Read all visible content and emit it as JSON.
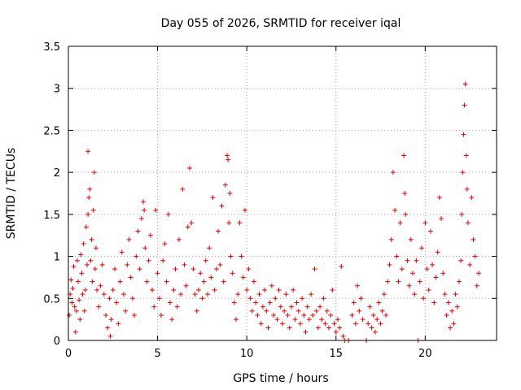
{
  "chart_data": {
    "type": "scatter",
    "title": "Day 055 of 2026, SRMTID for receiver iqal",
    "xlabel": "GPS time / hours",
    "ylabel": "SRMTID / TECUs",
    "xlim": [
      0,
      24
    ],
    "ylim": [
      0,
      3.5
    ],
    "xticks": [
      0,
      5,
      10,
      15,
      20
    ],
    "yticks": [
      0,
      0.5,
      1,
      1.5,
      2,
      2.5,
      3,
      3.5
    ],
    "xtick_labels": [
      "0",
      "5",
      "10",
      "15",
      "20"
    ],
    "ytick_labels": [
      "0",
      "0.5",
      "1",
      "1.5",
      "2",
      "2.5",
      "3",
      "3.5"
    ],
    "grid": true,
    "marker": "+",
    "series": [
      {
        "name": "iqal",
        "color": "#e00000",
        "points": [
          [
            0.05,
            0.3
          ],
          [
            0.1,
            0.55
          ],
          [
            0.15,
            0.72
          ],
          [
            0.2,
            0.45
          ],
          [
            0.25,
            0.62
          ],
          [
            0.3,
            0.88
          ],
          [
            0.35,
            0.4
          ],
          [
            0.4,
            0.1
          ],
          [
            0.45,
            0.35
          ],
          [
            0.5,
            0.95
          ],
          [
            0.55,
            0.7
          ],
          [
            0.6,
            0.48
          ],
          [
            0.65,
            0.25
          ],
          [
            0.7,
            1.02
          ],
          [
            0.75,
            0.8
          ],
          [
            0.8,
            0.55
          ],
          [
            0.85,
            1.15
          ],
          [
            0.9,
            0.35
          ],
          [
            0.95,
            0.6
          ],
          [
            1.0,
            1.35
          ],
          [
            1.05,
            0.9
          ],
          [
            1.1,
            1.5
          ],
          [
            1.15,
            1.7
          ],
          [
            1.2,
            1.8
          ],
          [
            1.1,
            2.25
          ],
          [
            1.25,
            0.95
          ],
          [
            1.3,
            1.2
          ],
          [
            1.35,
            0.7
          ],
          [
            1.4,
            1.55
          ],
          [
            1.45,
            2.0
          ],
          [
            1.5,
            0.85
          ],
          [
            1.55,
            1.1
          ],
          [
            1.6,
            0.6
          ],
          [
            1.7,
            0.4
          ],
          [
            1.8,
            0.65
          ],
          [
            1.9,
            0.9
          ],
          [
            2.0,
            0.55
          ],
          [
            2.1,
            0.3
          ],
          [
            2.2,
            0.15
          ],
          [
            2.3,
            0.5
          ],
          [
            2.35,
            0.05
          ],
          [
            2.4,
            0.25
          ],
          [
            2.5,
            0.6
          ],
          [
            2.6,
            0.85
          ],
          [
            2.7,
            0.45
          ],
          [
            2.8,
            0.2
          ],
          [
            2.9,
            0.7
          ],
          [
            3.0,
            1.05
          ],
          [
            3.1,
            0.55
          ],
          [
            3.2,
            0.35
          ],
          [
            3.3,
            0.9
          ],
          [
            3.4,
            1.2
          ],
          [
            3.5,
            0.75
          ],
          [
            3.6,
            0.5
          ],
          [
            3.7,
            0.3
          ],
          [
            3.8,
            1.0
          ],
          [
            3.9,
            1.3
          ],
          [
            4.0,
            0.85
          ],
          [
            4.1,
            1.45
          ],
          [
            4.2,
            1.65
          ],
          [
            4.25,
            1.55
          ],
          [
            4.3,
            1.1
          ],
          [
            4.4,
            0.7
          ],
          [
            4.5,
            0.95
          ],
          [
            4.6,
            1.25
          ],
          [
            4.7,
            0.6
          ],
          [
            4.8,
            0.4
          ],
          [
            4.9,
            1.55
          ],
          [
            5.0,
            0.8
          ],
          [
            5.1,
            0.5
          ],
          [
            5.2,
            0.3
          ],
          [
            5.3,
            0.95
          ],
          [
            5.4,
            1.15
          ],
          [
            5.5,
            0.7
          ],
          [
            5.6,
            1.5
          ],
          [
            5.7,
            0.45
          ],
          [
            5.8,
            0.25
          ],
          [
            5.9,
            0.6
          ],
          [
            6.0,
            0.85
          ],
          [
            6.1,
            0.4
          ],
          [
            6.2,
            1.2
          ],
          [
            6.3,
            0.55
          ],
          [
            6.4,
            1.8
          ],
          [
            6.5,
            0.9
          ],
          [
            6.6,
            0.65
          ],
          [
            6.7,
            1.35
          ],
          [
            6.8,
            2.05
          ],
          [
            6.9,
            1.4
          ],
          [
            7.0,
            0.85
          ],
          [
            7.1,
            0.55
          ],
          [
            7.2,
            0.35
          ],
          [
            7.3,
            0.6
          ],
          [
            7.4,
            0.8
          ],
          [
            7.5,
            0.5
          ],
          [
            7.6,
            0.7
          ],
          [
            7.7,
            0.95
          ],
          [
            7.8,
            0.55
          ],
          [
            7.9,
            1.1
          ],
          [
            8.0,
            0.75
          ],
          [
            8.1,
            1.7
          ],
          [
            8.2,
            0.6
          ],
          [
            8.3,
            0.85
          ],
          [
            8.4,
            1.3
          ],
          [
            8.5,
            0.9
          ],
          [
            8.6,
            1.6
          ],
          [
            8.7,
            0.7
          ],
          [
            8.8,
            1.85
          ],
          [
            8.9,
            2.2
          ],
          [
            8.95,
            2.15
          ],
          [
            9.0,
            1.4
          ],
          [
            9.05,
            1.75
          ],
          [
            9.1,
            1.0
          ],
          [
            9.2,
            0.8
          ],
          [
            9.3,
            0.45
          ],
          [
            9.4,
            0.25
          ],
          [
            9.5,
            0.55
          ],
          [
            9.6,
            1.4
          ],
          [
            9.7,
            1.0
          ],
          [
            9.8,
            0.75
          ],
          [
            9.9,
            1.55
          ],
          [
            10.0,
            0.6
          ],
          [
            10.1,
            0.85
          ],
          [
            10.2,
            0.5
          ],
          [
            10.3,
            0.35
          ],
          [
            10.4,
            0.7
          ],
          [
            10.5,
            0.45
          ],
          [
            10.6,
            0.3
          ],
          [
            10.7,
            0.55
          ],
          [
            10.8,
            0.2
          ],
          [
            10.9,
            0.4
          ],
          [
            11.0,
            0.6
          ],
          [
            11.1,
            0.35
          ],
          [
            11.2,
            0.15
          ],
          [
            11.3,
            0.45
          ],
          [
            11.4,
            0.65
          ],
          [
            11.5,
            0.3
          ],
          [
            11.6,
            0.5
          ],
          [
            11.7,
            0.25
          ],
          [
            11.8,
            0.6
          ],
          [
            11.9,
            0.4
          ],
          [
            12.0,
            0.2
          ],
          [
            12.1,
            0.35
          ],
          [
            12.2,
            0.55
          ],
          [
            12.3,
            0.3
          ],
          [
            12.4,
            0.15
          ],
          [
            12.5,
            0.4
          ],
          [
            12.6,
            0.6
          ],
          [
            12.7,
            0.25
          ],
          [
            12.8,
            0.45
          ],
          [
            12.9,
            0.35
          ],
          [
            13.0,
            0.2
          ],
          [
            13.1,
            0.5
          ],
          [
            13.2,
            0.3
          ],
          [
            13.3,
            0.1
          ],
          [
            13.4,
            0.4
          ],
          [
            13.5,
            0.25
          ],
          [
            13.6,
            0.55
          ],
          [
            13.7,
            0.3
          ],
          [
            13.8,
            0.85
          ],
          [
            13.9,
            0.35
          ],
          [
            14.0,
            0.15
          ],
          [
            14.1,
            0.4
          ],
          [
            14.2,
            0.25
          ],
          [
            14.3,
            0.5
          ],
          [
            14.4,
            0.2
          ],
          [
            14.5,
            0.35
          ],
          [
            14.6,
            0.15
          ],
          [
            14.7,
            0.3
          ],
          [
            14.8,
            0.6
          ],
          [
            14.9,
            0.2
          ],
          [
            15.0,
            0.1
          ],
          [
            15.1,
            0.25
          ],
          [
            15.2,
            0.15
          ],
          [
            15.3,
            0.88
          ],
          [
            15.4,
            0.05
          ],
          [
            15.5,
            0.0
          ],
          [
            15.7,
            0.0
          ],
          [
            15.9,
            0.3
          ],
          [
            16.0,
            0.45
          ],
          [
            16.1,
            0.2
          ],
          [
            16.2,
            0.65
          ],
          [
            16.3,
            0.35
          ],
          [
            16.4,
            0.5
          ],
          [
            16.5,
            0.25
          ],
          [
            16.7,
            0.0
          ],
          [
            16.8,
            0.2
          ],
          [
            16.9,
            0.4
          ],
          [
            17.0,
            0.15
          ],
          [
            17.1,
            0.3
          ],
          [
            17.2,
            0.1
          ],
          [
            17.3,
            0.25
          ],
          [
            17.4,
            0.45
          ],
          [
            17.5,
            0.2
          ],
          [
            17.6,
            0.35
          ],
          [
            17.7,
            0.55
          ],
          [
            17.8,
            0.3
          ],
          [
            17.9,
            0.7
          ],
          [
            18.0,
            0.9
          ],
          [
            18.1,
            1.2
          ],
          [
            18.2,
            2.0
          ],
          [
            18.3,
            1.55
          ],
          [
            18.4,
            1.0
          ],
          [
            18.5,
            0.7
          ],
          [
            18.6,
            1.4
          ],
          [
            18.7,
            0.85
          ],
          [
            18.8,
            2.2
          ],
          [
            18.85,
            1.75
          ],
          [
            18.9,
            1.5
          ],
          [
            19.0,
            0.95
          ],
          [
            19.1,
            0.65
          ],
          [
            19.2,
            1.2
          ],
          [
            19.3,
            0.8
          ],
          [
            19.4,
            0.55
          ],
          [
            19.5,
            0.95
          ],
          [
            19.6,
            0.0
          ],
          [
            19.7,
            0.7
          ],
          [
            19.8,
            1.1
          ],
          [
            19.9,
            0.5
          ],
          [
            20.0,
            1.4
          ],
          [
            20.1,
            0.85
          ],
          [
            20.2,
            0.6
          ],
          [
            20.3,
            1.3
          ],
          [
            20.4,
            0.9
          ],
          [
            20.5,
            0.45
          ],
          [
            20.6,
            0.75
          ],
          [
            20.7,
            1.05
          ],
          [
            20.8,
            1.7
          ],
          [
            20.9,
            1.45
          ],
          [
            21.0,
            0.8
          ],
          [
            21.1,
            0.55
          ],
          [
            21.2,
            0.3
          ],
          [
            21.3,
            0.45
          ],
          [
            21.4,
            0.15
          ],
          [
            21.5,
            0.35
          ],
          [
            21.6,
            0.2
          ],
          [
            21.7,
            0.55
          ],
          [
            21.8,
            0.4
          ],
          [
            21.9,
            0.7
          ],
          [
            22.0,
            0.95
          ],
          [
            22.05,
            1.5
          ],
          [
            22.1,
            2.0
          ],
          [
            22.15,
            2.45
          ],
          [
            22.2,
            2.8
          ],
          [
            22.25,
            3.05
          ],
          [
            22.3,
            2.2
          ],
          [
            22.35,
            1.8
          ],
          [
            22.4,
            1.4
          ],
          [
            22.5,
            0.9
          ],
          [
            22.6,
            1.7
          ],
          [
            22.7,
            1.2
          ],
          [
            22.8,
            1.0
          ],
          [
            22.9,
            0.65
          ],
          [
            23.0,
            0.8
          ]
        ]
      }
    ]
  }
}
